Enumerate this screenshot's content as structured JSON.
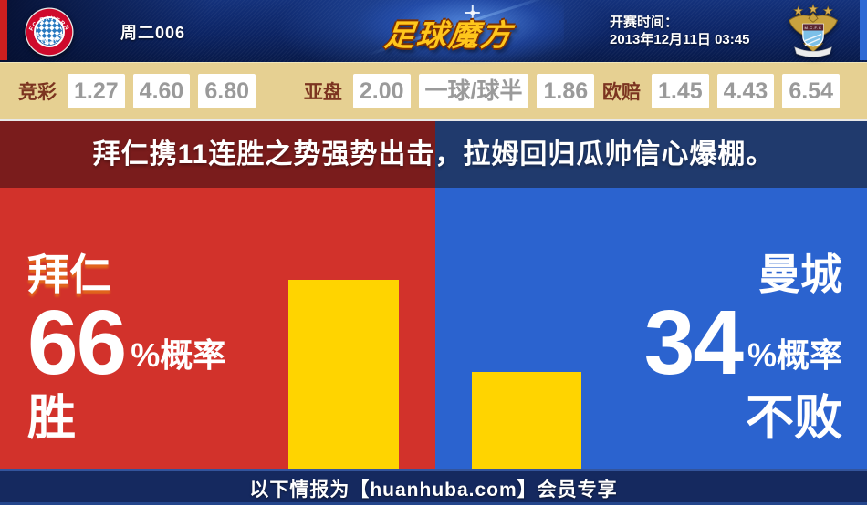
{
  "colors": {
    "home_red": "#d2322b",
    "away_blue": "#2b63cf",
    "bar_yellow": "#ffd400",
    "banner_red_dark": "#7a1c1c",
    "banner_blue_dark": "#203a6d",
    "odds_bg": "#e6d092",
    "odds_label": "#7c3420",
    "odds_value": "#9a9a9a",
    "header_navy": "#0c2464",
    "footer_navy": "#15295f",
    "logo_gold": "#ffc61c"
  },
  "header": {
    "match_code": "周二006",
    "site_logo": "足球魔方",
    "kickoff_label": "开赛时间：",
    "kickoff_time": "2013年12月11日 03:45",
    "home_crest": {
      "top_text": "FC BAYERN",
      "bottom_text": "MÜNCHEN"
    },
    "away_crest": {
      "band_text": "M.C.F.C"
    }
  },
  "odds_groups": [
    {
      "label": "竞彩",
      "values": [
        "1.27",
        "4.60",
        "6.80"
      ]
    },
    {
      "label": "亚盘",
      "values": [
        "2.00",
        "一球/球半",
        "1.86"
      ]
    },
    {
      "label": "欧赔",
      "values": [
        "1.45",
        "4.43",
        "6.54"
      ]
    }
  ],
  "headline": "拜仁携11连胜之势强势出击，拉姆回归瓜帅信心爆棚。",
  "prediction": {
    "home": {
      "team": "拜仁",
      "percent": "66",
      "suffix": "%概率",
      "outcome": "胜"
    },
    "away": {
      "team": "曼城",
      "percent": "34",
      "suffix": "%概率",
      "outcome": "不败"
    }
  },
  "footer_text": "以下情报为【huanhuba.com】会员专享",
  "chart_data": {
    "type": "bar",
    "categories": [
      "拜仁 胜",
      "曼城 不败"
    ],
    "values": [
      66,
      34
    ],
    "unit": "%概率",
    "ylim": [
      0,
      100
    ],
    "bar_color": "#ffd400",
    "grid": false,
    "legend": false
  }
}
